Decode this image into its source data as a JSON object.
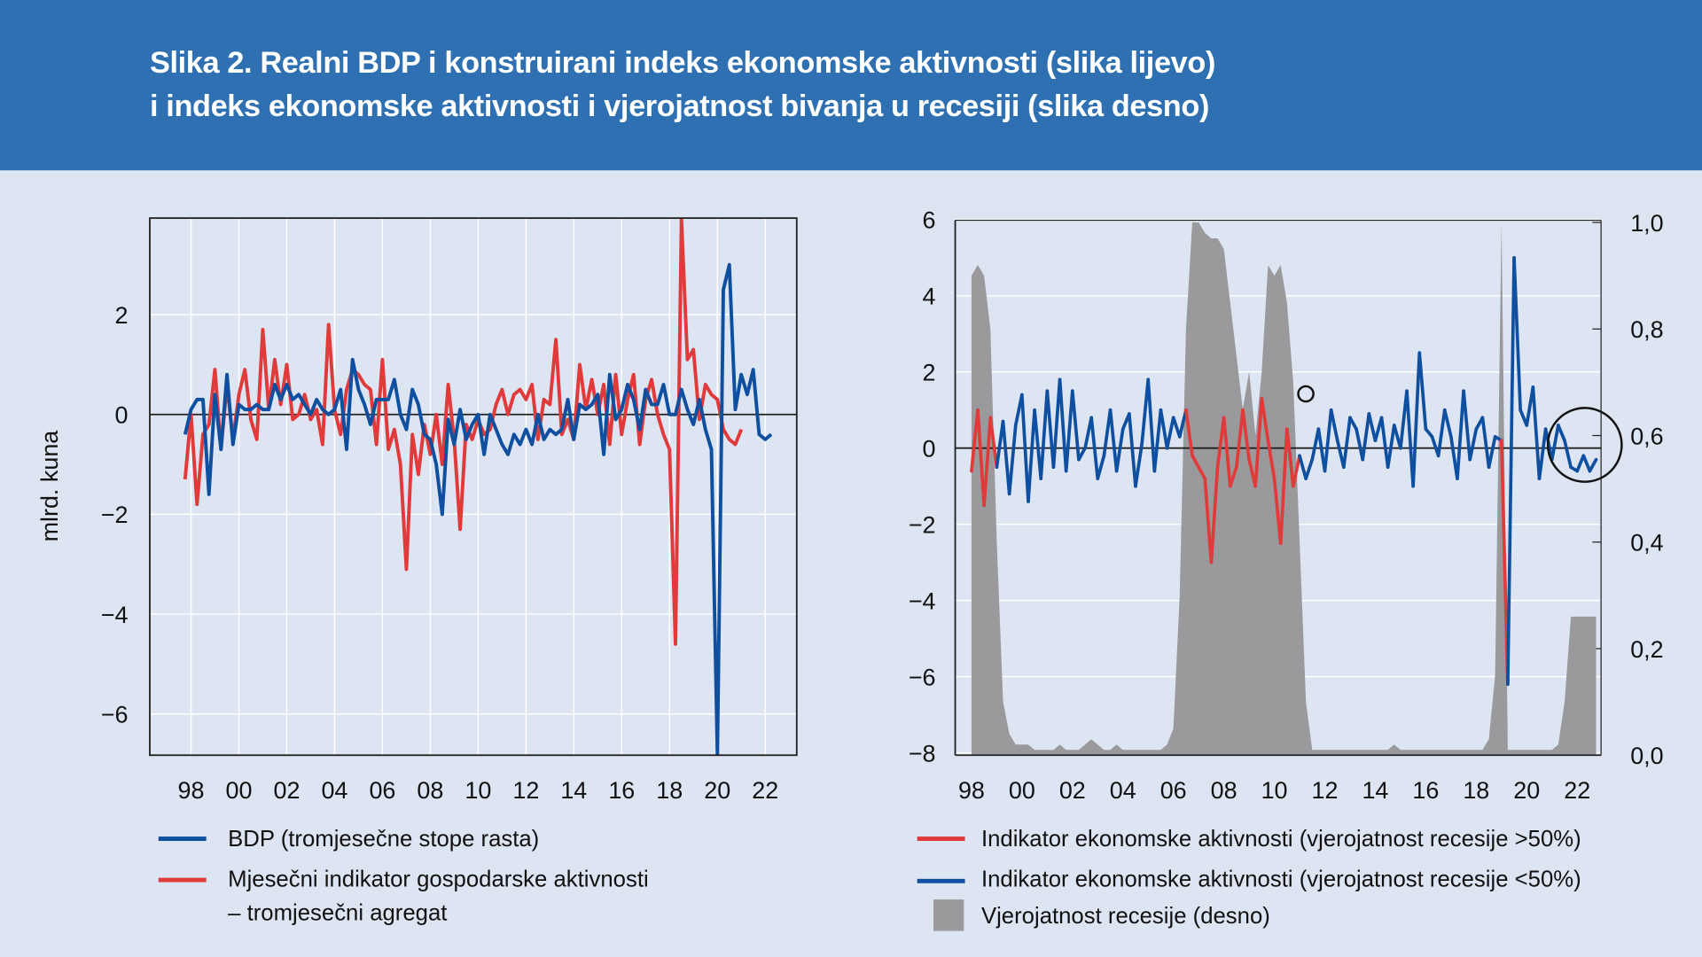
{
  "title": {
    "line1": "Slika 2. Realni BDP i konstruirani indeks ekonomske aktivnosti (slika lijevo)",
    "line2": "i indeks ekonomske aktivnosti i vjerojatnost bivanja u recesiji (slika desno)"
  },
  "colors": {
    "header": "#2e70b1",
    "background": "#dde4f2",
    "blue": "#0e4fa0",
    "red": "#e03a3a",
    "gray": "#9a9a9c"
  },
  "chart_data": [
    {
      "type": "line",
      "title": "Realni BDP i konstruirani indeks ekonomske aktivnosti",
      "ylabel": "mlrd. kuna",
      "ylim": [
        -6.8,
        3.93
      ],
      "xlim": [
        1997.2,
        2023.3
      ],
      "yticks": [
        {
          "v": 2,
          "label": "2"
        },
        {
          "v": 0,
          "label": "0"
        },
        {
          "v": -2,
          "label": "−2"
        },
        {
          "v": -4,
          "label": "−4"
        },
        {
          "v": -6,
          "label": "−6"
        }
      ],
      "xticks": [
        {
          "v": 1998,
          "label": "98"
        },
        {
          "v": 2000,
          "label": "00"
        },
        {
          "v": 2002,
          "label": "02"
        },
        {
          "v": 2004,
          "label": "04"
        },
        {
          "v": 2006,
          "label": "06"
        },
        {
          "v": 2008,
          "label": "08"
        },
        {
          "v": 2010,
          "label": "10"
        },
        {
          "v": 2012,
          "label": "12"
        },
        {
          "v": 2014,
          "label": "14"
        },
        {
          "v": 2016,
          "label": "16"
        },
        {
          "v": 2018,
          "label": "18"
        },
        {
          "v": 2020,
          "label": "20"
        },
        {
          "v": 2022,
          "label": "22"
        }
      ],
      "x_start": 1997.75,
      "x_step": 0.25,
      "series": [
        {
          "name": "BDP (tromjesečne stope rasta)",
          "color": "#0e4fa0",
          "values": [
            -0.4,
            0.1,
            0.3,
            0.3,
            -1.6,
            0.4,
            -0.7,
            0.8,
            -0.6,
            0.2,
            0.1,
            0.1,
            0.2,
            0.1,
            0.1,
            0.6,
            0.3,
            0.6,
            0.3,
            0.4,
            0.2,
            0.0,
            0.3,
            0.1,
            0.0,
            0.1,
            0.5,
            -0.7,
            1.1,
            0.5,
            0.2,
            -0.2,
            0.3,
            0.3,
            0.3,
            0.7,
            0.0,
            -0.3,
            0.5,
            0.2,
            -0.4,
            -0.5,
            -1.0,
            -2.0,
            -0.1,
            -0.6,
            0.1,
            -0.5,
            -0.2,
            0.0,
            -0.8,
            0.0,
            -0.3,
            -0.6,
            -0.8,
            -0.4,
            -0.6,
            -0.3,
            -0.6,
            0.0,
            -0.5,
            -0.3,
            -0.4,
            -0.3,
            0.3,
            -0.5,
            0.2,
            0.1,
            0.2,
            0.4,
            -0.8,
            0.8,
            -0.1,
            0.1,
            0.6,
            0.3,
            -0.3,
            0.5,
            0.2,
            0.2,
            0.6,
            0.0,
            0.0,
            0.5,
            0.1,
            -0.2,
            0.3,
            -0.3,
            -0.7,
            -6.8,
            2.5,
            3.0,
            0.1,
            0.8,
            0.4,
            0.9,
            -0.4,
            -0.5,
            -0.4
          ]
        },
        {
          "name": "Mjesečni indikator gospodarske aktivnosti – tromjesečni agregat",
          "color": "#e03a3a",
          "values": [
            -1.3,
            0.0,
            -1.8,
            -0.4,
            -0.2,
            0.9,
            -0.7,
            0.6,
            -0.5,
            0.4,
            0.9,
            -0.1,
            -0.5,
            1.7,
            0.1,
            1.1,
            0.2,
            1.0,
            -0.1,
            0.0,
            0.4,
            -0.1,
            0.1,
            -0.6,
            1.8,
            0.1,
            -0.4,
            0.5,
            0.9,
            0.8,
            0.6,
            0.5,
            -0.6,
            1.1,
            -0.7,
            -0.3,
            -1.0,
            -3.1,
            -0.4,
            -1.2,
            -0.2,
            -0.8,
            0.0,
            -1.0,
            0.6,
            -0.5,
            -2.3,
            -0.2,
            -0.5,
            -0.1,
            -0.4,
            -0.3,
            0.2,
            0.5,
            0.0,
            0.4,
            0.5,
            0.3,
            0.6,
            -0.5,
            0.3,
            0.2,
            1.5,
            -0.4,
            -0.1,
            -0.5,
            1.0,
            0.1,
            0.7,
            0.0,
            0.6,
            -0.6,
            0.8,
            -0.4,
            0.3,
            0.8,
            -0.6,
            0.3,
            0.7,
            0.0,
            -0.4,
            -0.7,
            -4.6,
            3.9,
            1.1,
            1.3,
            -0.1,
            0.6,
            0.4,
            0.3,
            -0.3,
            -0.5,
            -0.6,
            -0.3
          ]
        }
      ],
      "legend": {
        "item1": "BDP (tromjesečne stope rasta)",
        "item2a": "Mjesečni indikator gospodarske aktivnosti",
        "item2b": "– tromjesečni agregat"
      }
    },
    {
      "type": "line",
      "title": "Indeks ekonomske aktivnosti i vjerojatnost bivanja u recesiji",
      "ylim": [
        -8,
        6
      ],
      "y2lim": [
        0,
        1.0
      ],
      "xlim": [
        1997.35,
        2023.05
      ],
      "yticks": [
        {
          "v": 6,
          "label": "6"
        },
        {
          "v": 4,
          "label": "4"
        },
        {
          "v": 2,
          "label": "2"
        },
        {
          "v": 0,
          "label": "0"
        },
        {
          "v": -2,
          "label": "−2"
        },
        {
          "v": -4,
          "label": "−4"
        },
        {
          "v": -6,
          "label": "−6"
        },
        {
          "v": -8,
          "label": "−8"
        }
      ],
      "y2ticks": [
        {
          "v": 1.0,
          "label": "1,0"
        },
        {
          "v": 0.8,
          "label": "0,8"
        },
        {
          "v": 0.6,
          "label": "0,6"
        },
        {
          "v": 0.4,
          "label": "0,4"
        },
        {
          "v": 0.2,
          "label": "0,2"
        },
        {
          "v": 0.0,
          "label": "0,0"
        }
      ],
      "xticks": [
        {
          "v": 1998,
          "label": "98"
        },
        {
          "v": 2000,
          "label": "00"
        },
        {
          "v": 2002,
          "label": "02"
        },
        {
          "v": 2004,
          "label": "04"
        },
        {
          "v": 2006,
          "label": "06"
        },
        {
          "v": 2008,
          "label": "08"
        },
        {
          "v": 2010,
          "label": "10"
        },
        {
          "v": 2012,
          "label": "12"
        },
        {
          "v": 2014,
          "label": "14"
        },
        {
          "v": 2016,
          "label": "16"
        },
        {
          "v": 2018,
          "label": "18"
        },
        {
          "v": 2020,
          "label": "20"
        },
        {
          "v": 2022,
          "label": "22"
        }
      ],
      "x_start": 1998.0,
      "x_step": 0.25,
      "indicator": [
        -0.6,
        1.0,
        -1.5,
        0.8,
        -0.5,
        0.7,
        -1.2,
        0.6,
        1.4,
        -1.4,
        1.0,
        -0.8,
        1.5,
        -0.5,
        1.8,
        -0.6,
        1.5,
        -0.3,
        0.0,
        0.8,
        -0.8,
        -0.2,
        1.0,
        -0.6,
        0.5,
        0.9,
        -1.0,
        0.1,
        1.8,
        -0.6,
        1.0,
        0.0,
        0.8,
        0.3,
        1.0,
        -0.2,
        -0.5,
        -0.8,
        -3.0,
        -0.5,
        0.8,
        -1.0,
        -0.5,
        1.0,
        -0.3,
        -1.0,
        1.3,
        0.2,
        -0.8,
        -2.5,
        0.5,
        -1.0,
        -0.2,
        -0.8,
        -0.3,
        0.5,
        -0.6,
        1.0,
        0.2,
        -0.5,
        0.8,
        0.5,
        -0.3,
        0.9,
        0.2,
        0.8,
        -0.5,
        0.6,
        0.0,
        1.5,
        -1.0,
        2.5,
        0.5,
        0.3,
        -0.2,
        1.0,
        0.3,
        -0.8,
        1.5,
        -0.3,
        0.5,
        0.8,
        -0.5,
        0.3,
        0.2,
        -6.2,
        5.0,
        1.0,
        0.6,
        1.6,
        -0.8,
        0.5,
        -0.3,
        0.6,
        0.2,
        -0.5,
        -0.6,
        -0.2,
        -0.6,
        -0.3
      ],
      "probability": [
        0.9,
        0.92,
        0.9,
        0.8,
        0.4,
        0.1,
        0.04,
        0.02,
        0.02,
        0.02,
        0.01,
        0.01,
        0.01,
        0.01,
        0.02,
        0.01,
        0.01,
        0.01,
        0.02,
        0.03,
        0.02,
        0.01,
        0.01,
        0.02,
        0.01,
        0.01,
        0.01,
        0.01,
        0.01,
        0.01,
        0.01,
        0.02,
        0.05,
        0.3,
        0.8,
        1.0,
        1.0,
        0.98,
        0.97,
        0.97,
        0.95,
        0.85,
        0.75,
        0.65,
        0.72,
        0.6,
        0.72,
        0.92,
        0.9,
        0.92,
        0.85,
        0.7,
        0.4,
        0.1,
        0.01,
        0.01,
        0.01,
        0.01,
        0.01,
        0.01,
        0.01,
        0.01,
        0.01,
        0.01,
        0.01,
        0.01,
        0.01,
        0.02,
        0.01,
        0.01,
        0.01,
        0.01,
        0.01,
        0.01,
        0.01,
        0.01,
        0.01,
        0.01,
        0.01,
        0.01,
        0.01,
        0.01,
        0.03,
        0.15,
        1.0,
        0.01,
        0.01,
        0.01,
        0.01,
        0.01,
        0.01,
        0.01,
        0.01,
        0.02,
        0.1,
        0.26,
        0.26,
        0.26,
        0.26,
        0.26
      ],
      "legend": {
        "item1": "Indikator ekonomske aktivnosti (vjerojatnost recesije >50%)",
        "item2": "Indikator ekonomske aktivnosti (vjerojatnost recesije <50%)",
        "item3": "Vjerojatnost recesije (desno)"
      }
    }
  ]
}
